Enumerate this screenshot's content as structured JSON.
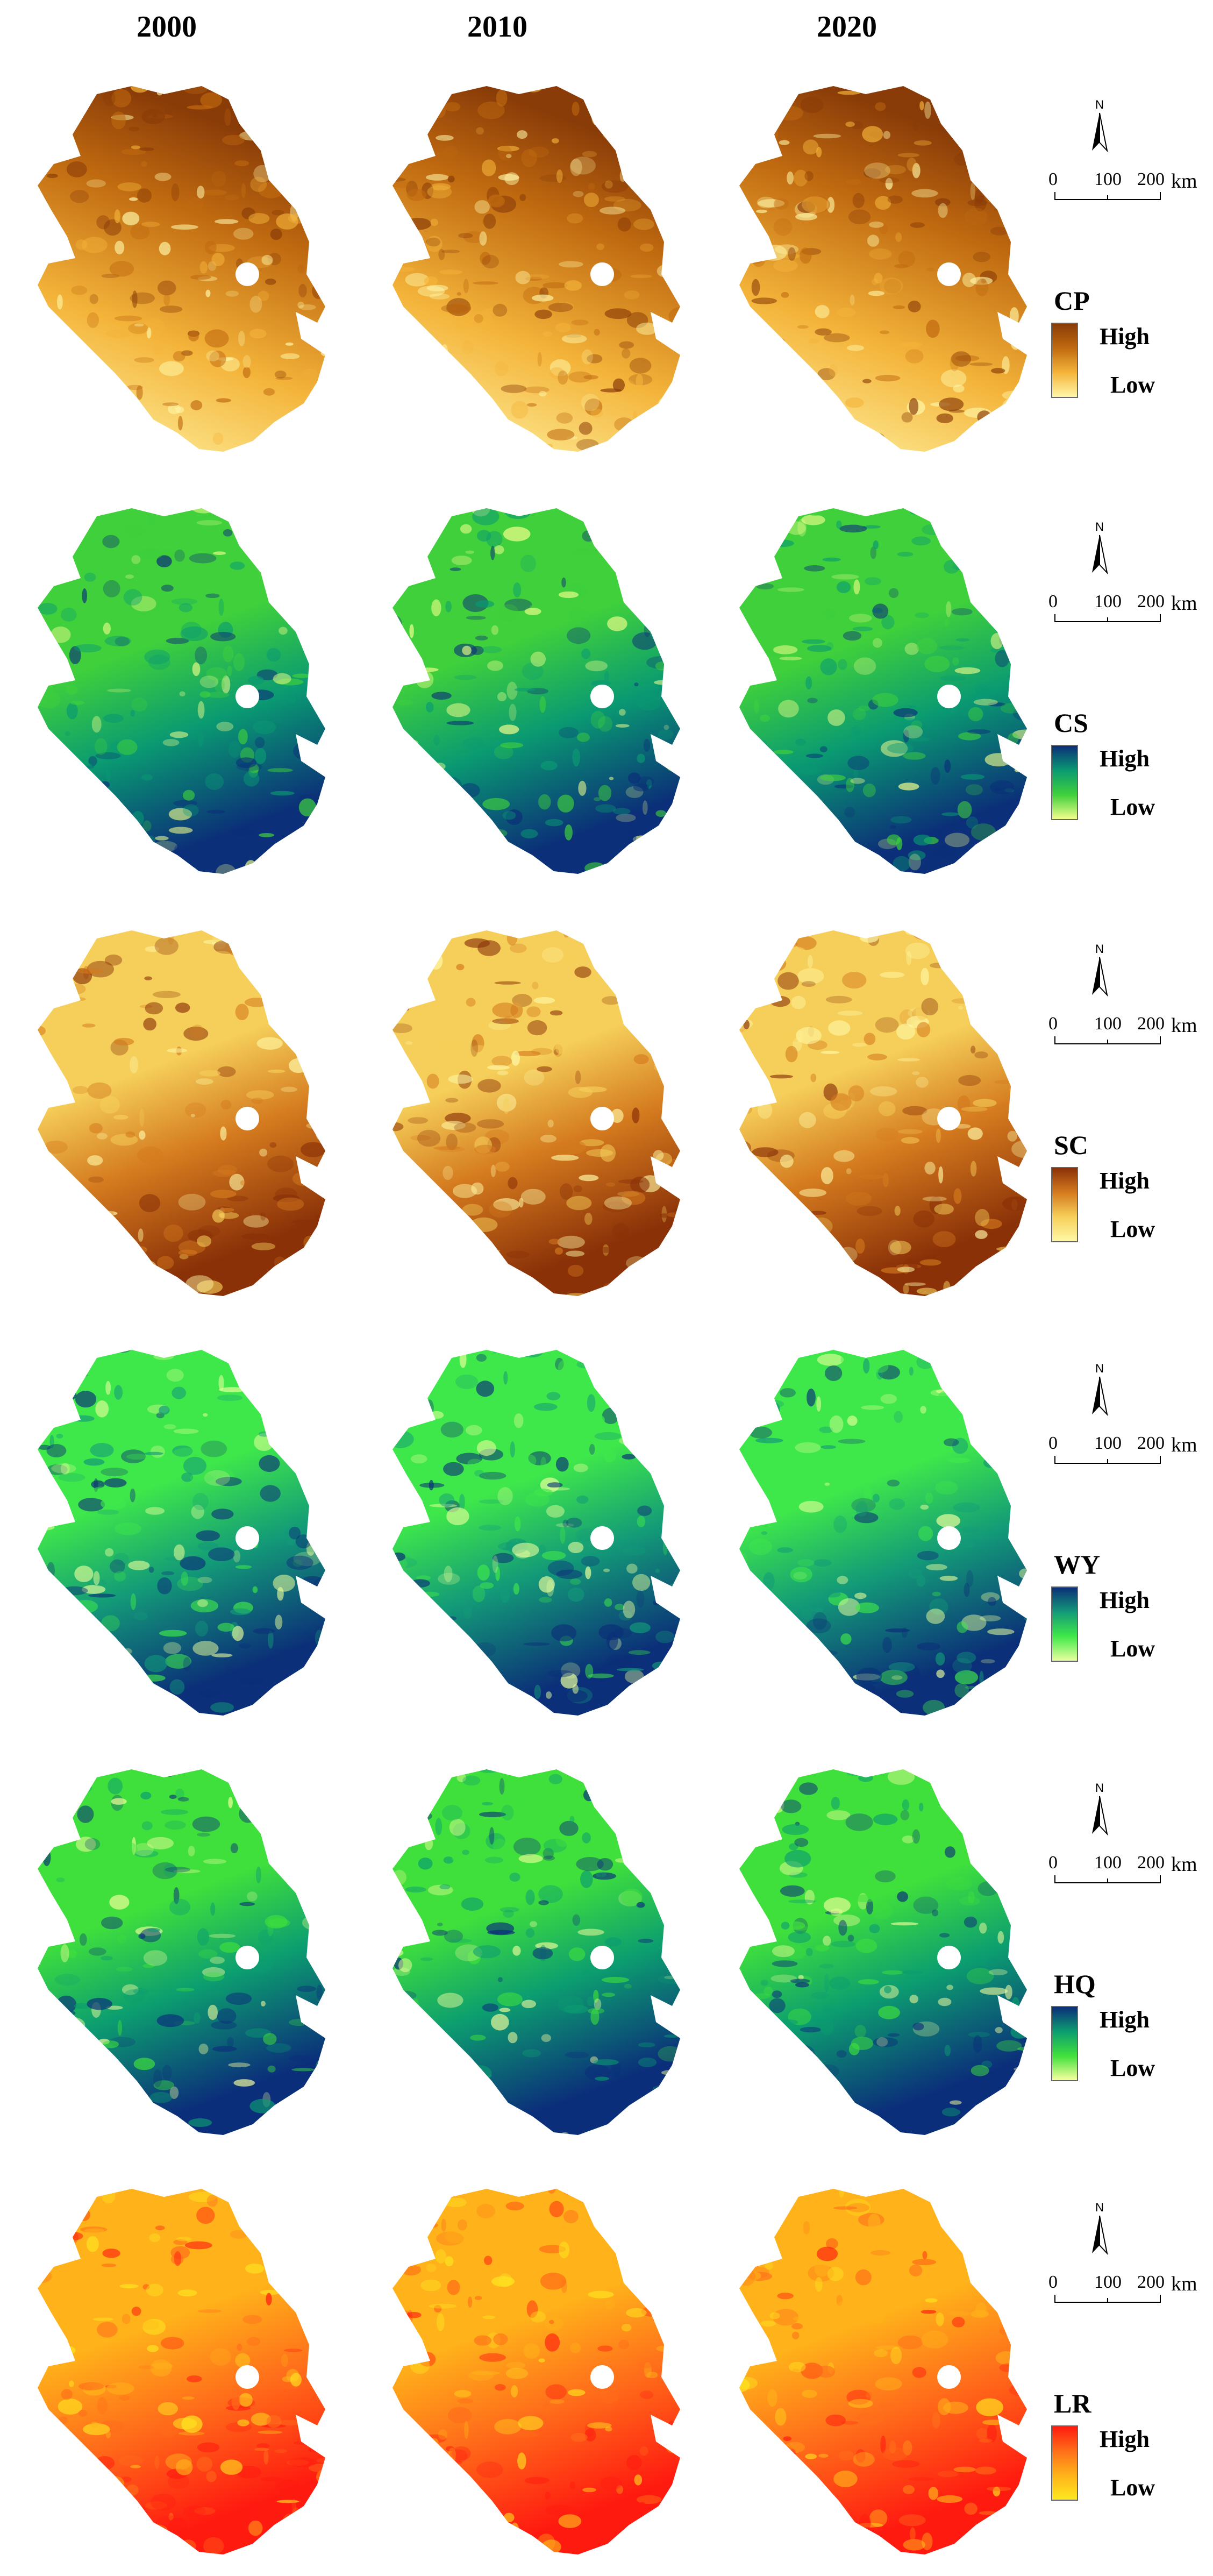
{
  "years": [
    "2000",
    "2010",
    "2020"
  ],
  "scale": {
    "zero": "0",
    "mid": "100",
    "max": "200",
    "unit": "km"
  },
  "north_label": "N",
  "rows": [
    {
      "code": "CP",
      "high": "High",
      "low": "Low",
      "colors": [
        "#fff7a8",
        "#f4b43a",
        "#c06a10",
        "#8a3c08"
      ],
      "name_icon": "cp-legend"
    },
    {
      "code": "CS",
      "high": "High",
      "low": "Low",
      "colors": [
        "#f2ff8c",
        "#3fd03c",
        "#0a9a72",
        "#0b2f78"
      ],
      "name_icon": "cs-legend"
    },
    {
      "code": "SC",
      "high": "High",
      "low": "Low",
      "colors": [
        "#fff8a6",
        "#f6cf5a",
        "#d47a1e",
        "#8a3108"
      ],
      "name_icon": "sc-legend"
    },
    {
      "code": "WY",
      "high": "High",
      "low": "Low",
      "colors": [
        "#e8ff9c",
        "#3fe84a",
        "#139a78",
        "#0b2f78"
      ],
      "name_icon": "wy-legend"
    },
    {
      "code": "HQ",
      "high": "High",
      "low": "Low",
      "colors": [
        "#f6ff9e",
        "#3fe03c",
        "#0c9d70",
        "#0b2e7a"
      ],
      "name_icon": "hq-legend"
    },
    {
      "code": "LR",
      "high": "High",
      "low": "Low",
      "colors": [
        "#ffe820",
        "#ffb21a",
        "#ff6e1a",
        "#ff1a10"
      ],
      "name_icon": "lr-legend"
    }
  ]
}
